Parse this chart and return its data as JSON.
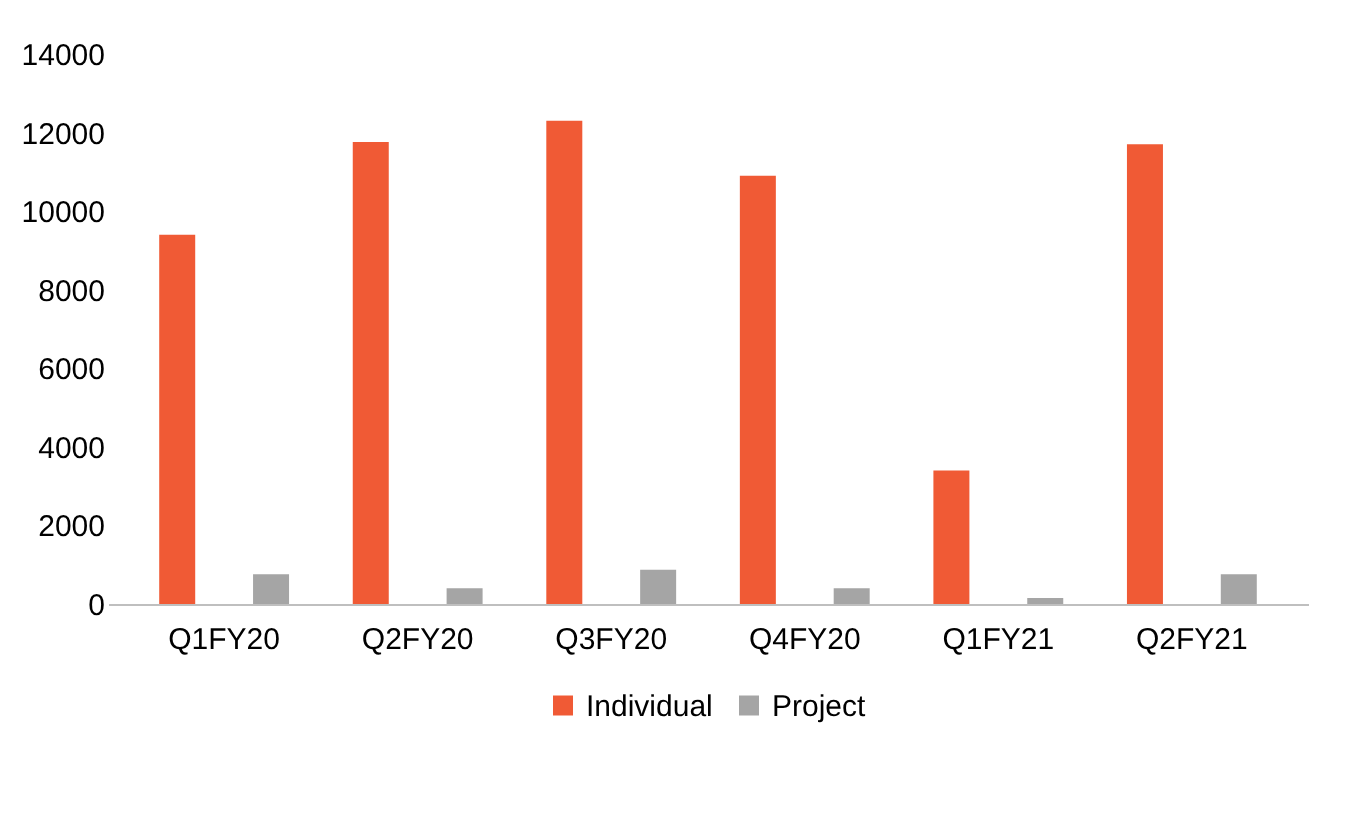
{
  "chart_data": {
    "type": "bar",
    "categories": [
      "Q1FY20",
      "Q2FY20",
      "Q3FY20",
      "Q4FY20",
      "Q1FY21",
      "Q2FY21"
    ],
    "series": [
      {
        "name": "Individual",
        "color": "#f05a35",
        "values": [
          9400,
          11760,
          12300,
          10900,
          3400,
          11700
        ]
      },
      {
        "name": "Project",
        "color": "#a5a5a5",
        "values": [
          760,
          400,
          870,
          400,
          150,
          760
        ]
      }
    ],
    "ylim": [
      0,
      14000
    ],
    "yticks": [
      0,
      2000,
      4000,
      6000,
      8000,
      10000,
      12000,
      14000
    ],
    "grid": false,
    "legend": "bottom"
  }
}
